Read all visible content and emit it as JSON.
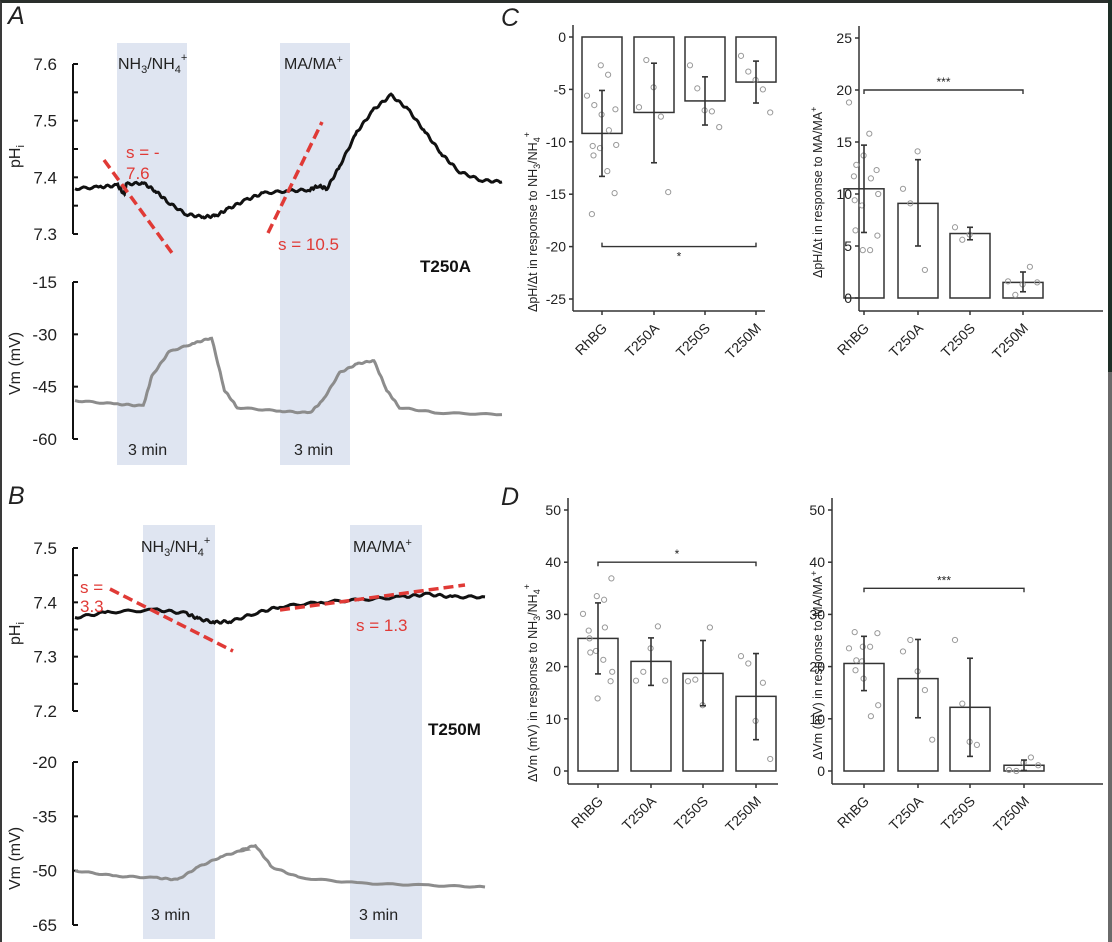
{
  "panels": {
    "A": {
      "letter": "A",
      "variant": "T250A",
      "ph_axis": {
        "label": "pH",
        "label_sub": "i",
        "ticks": [
          "7.6",
          "7.5",
          "7.4",
          "7.3"
        ],
        "range": [
          7.3,
          7.6
        ]
      },
      "vm_axis": {
        "label": "Vm (mV)",
        "ticks": [
          "-15",
          "-30",
          "-45",
          "-60"
        ],
        "range": [
          -60,
          -15
        ]
      },
      "stim1": {
        "label_main": "NH",
        "label_sub1": "3",
        "label_mid": "/NH",
        "label_sub2": "4",
        "label_sup": "+",
        "duration": "3 min"
      },
      "stim2": {
        "label_main": "MA/MA",
        "label_sup": "+",
        "duration": "3 min"
      },
      "slope1": {
        "line1": "s = -",
        "line2": "7.6"
      },
      "slope2": {
        "text": "s = 10.5"
      },
      "ph_trace": [
        [
          0,
          7.38
        ],
        [
          0.06,
          7.383
        ],
        [
          0.1,
          7.386
        ],
        [
          0.115,
          7.37
        ],
        [
          0.12,
          7.388
        ],
        [
          0.16,
          7.39
        ],
        [
          0.19,
          7.375
        ],
        [
          0.22,
          7.355
        ],
        [
          0.26,
          7.335
        ],
        [
          0.3,
          7.33
        ],
        [
          0.33,
          7.332
        ],
        [
          0.36,
          7.345
        ],
        [
          0.4,
          7.36
        ],
        [
          0.44,
          7.372
        ],
        [
          0.5,
          7.376
        ],
        [
          0.55,
          7.378
        ],
        [
          0.57,
          7.385
        ],
        [
          0.59,
          7.38
        ],
        [
          0.62,
          7.42
        ],
        [
          0.66,
          7.48
        ],
        [
          0.7,
          7.52
        ],
        [
          0.74,
          7.545
        ],
        [
          0.78,
          7.52
        ],
        [
          0.82,
          7.48
        ],
        [
          0.86,
          7.44
        ],
        [
          0.9,
          7.41
        ],
        [
          0.95,
          7.395
        ],
        [
          1.0,
          7.392
        ]
      ],
      "vm_trace": [
        [
          0,
          -49
        ],
        [
          0.1,
          -50
        ],
        [
          0.16,
          -50.5
        ],
        [
          0.18,
          -42
        ],
        [
          0.22,
          -35
        ],
        [
          0.28,
          -32.5
        ],
        [
          0.32,
          -31
        ],
        [
          0.35,
          -46
        ],
        [
          0.38,
          -51
        ],
        [
          0.48,
          -52
        ],
        [
          0.55,
          -52.5
        ],
        [
          0.58,
          -49
        ],
        [
          0.62,
          -41
        ],
        [
          0.66,
          -38.5
        ],
        [
          0.7,
          -37.5
        ],
        [
          0.73,
          -46
        ],
        [
          0.76,
          -51
        ],
        [
          0.85,
          -52.5
        ],
        [
          1.0,
          -53
        ]
      ]
    },
    "B": {
      "letter": "B",
      "variant": "T250M",
      "ph_axis": {
        "label": "pH",
        "label_sub": "i",
        "ticks": [
          "7.5",
          "7.4",
          "7.3",
          "7.2"
        ],
        "range": [
          7.2,
          7.5
        ]
      },
      "vm_axis": {
        "label": "Vm (mV)",
        "ticks": [
          "-20",
          "-35",
          "-50",
          "-65"
        ],
        "range": [
          -65,
          -20
        ]
      },
      "stim1": {
        "label_main": "NH",
        "label_sub1": "3",
        "label_mid": "/NH",
        "label_sub2": "4",
        "label_sup": "+",
        "duration": "3 min"
      },
      "stim2": {
        "label_main": "MA/MA",
        "label_sup": "+",
        "duration": "3 min"
      },
      "slope1": {
        "line1": "s =",
        "line2": "3.3"
      },
      "slope2": {
        "text": "s = 1.3"
      },
      "ph_trace": [
        [
          0,
          7.372
        ],
        [
          0.08,
          7.382
        ],
        [
          0.2,
          7.386
        ],
        [
          0.27,
          7.38
        ],
        [
          0.3,
          7.37
        ],
        [
          0.34,
          7.363
        ],
        [
          0.38,
          7.365
        ],
        [
          0.44,
          7.38
        ],
        [
          0.5,
          7.392
        ],
        [
          0.6,
          7.4
        ],
        [
          0.7,
          7.405
        ],
        [
          0.8,
          7.41
        ],
        [
          0.86,
          7.415
        ],
        [
          0.92,
          7.41
        ],
        [
          1.0,
          7.41
        ]
      ],
      "vm_trace": [
        [
          0,
          -50
        ],
        [
          0.1,
          -51.5
        ],
        [
          0.2,
          -52
        ],
        [
          0.25,
          -52.5
        ],
        [
          0.3,
          -49
        ],
        [
          0.36,
          -46
        ],
        [
          0.42,
          -44
        ],
        [
          0.4,
          -44.5
        ],
        [
          0.44,
          -43
        ],
        [
          0.48,
          -49
        ],
        [
          0.55,
          -52
        ],
        [
          0.7,
          -53.5
        ],
        [
          0.85,
          -54
        ],
        [
          1.0,
          -54.5
        ]
      ]
    }
  },
  "chart_data": [
    {
      "type": "bar",
      "panel": "C",
      "letter": "C",
      "title": "",
      "ylabel": "ΔpH/Δt in response to NH3/NH4+",
      "categories": [
        "RhBG",
        "T250A",
        "T250S",
        "T250M"
      ],
      "ylim": [
        -26,
        1
      ],
      "yticks": [
        "0",
        "-5",
        "-10",
        "-15",
        "-20",
        "-25"
      ],
      "ytick_values": [
        0,
        -5,
        -10,
        -15,
        -20,
        -25
      ],
      "values": [
        -9.2,
        -7.2,
        -6.1,
        -4.3
      ],
      "error_low": [
        -13.3,
        -12.0,
        -8.4,
        -6.3
      ],
      "error_high": [
        -5.1,
        -2.5,
        -3.8,
        -2.3
      ],
      "points": [
        [
          -5.6,
          -6.5,
          -7.4,
          -8.9,
          -10.3,
          -11.3,
          -2.7,
          -3.6,
          -6.9,
          -10.4,
          -10.6,
          -12.8,
          -14.9,
          -16.9
        ],
        [
          -6.7,
          -2.2,
          -4.8,
          -7.6,
          -14.8
        ],
        [
          -2.7,
          -4.9,
          -7.0,
          -7.1,
          -8.6
        ],
        [
          -1.8,
          -3.3,
          -4.1,
          -5.0,
          -7.2
        ]
      ],
      "significance": {
        "from": "RhBG",
        "to": "T250M",
        "y": -20,
        "label": "*"
      }
    },
    {
      "type": "bar",
      "panel": "C-right",
      "title": "",
      "ylabel": "ΔpH/Δt in response to MA/MA+",
      "categories": [
        "RhBG",
        "T250A",
        "T250S",
        "T250M"
      ],
      "ylim": [
        -1,
        26
      ],
      "yticks": [
        "0",
        "5",
        "10",
        "15",
        "20",
        "25"
      ],
      "ytick_values": [
        0,
        5,
        10,
        15,
        20,
        25
      ],
      "values": [
        10.5,
        9.1,
        6.2,
        1.5
      ],
      "error_low": [
        6.3,
        5.0,
        5.6,
        0.6
      ],
      "error_high": [
        14.7,
        13.3,
        6.8,
        2.5
      ],
      "points": [
        [
          18.8,
          12.8,
          13.7,
          11.5,
          10.0,
          6.5,
          4.6,
          4.6,
          6.0,
          9.4,
          8.9,
          15.8,
          12.3,
          11.7
        ],
        [
          10.5,
          9.1,
          14.1,
          2.7
        ],
        [
          6.8,
          5.6,
          6.1
        ],
        [
          1.6,
          0.3,
          1.3,
          3.0,
          1.5
        ]
      ],
      "significance": {
        "from": "RhBG",
        "to": "T250M",
        "y": 20,
        "label": "***"
      }
    },
    {
      "type": "bar",
      "panel": "D",
      "letter": "D",
      "title": "",
      "ylabel": "ΔVm (mV) in response to NH3/NH4+",
      "categories": [
        "RhBG",
        "T250A",
        "T250S",
        "T250M"
      ],
      "ylim": [
        -2,
        52
      ],
      "yticks": [
        "0",
        "10",
        "20",
        "30",
        "40",
        "50"
      ],
      "ytick_values": [
        0,
        10,
        20,
        30,
        40,
        50
      ],
      "values": [
        25.4,
        21.0,
        18.7,
        14.3
      ],
      "error_low": [
        18.6,
        16.4,
        12.5,
        6.0
      ],
      "error_high": [
        32.2,
        25.5,
        25.0,
        22.5
      ],
      "points": [
        [
          30.1,
          22.7,
          13.9,
          27.5,
          19.0,
          25.4,
          33.5,
          32.8,
          36.9,
          26.9,
          23.0,
          21.3,
          17.2
        ],
        [
          17.3,
          19.0,
          23.5,
          27.7,
          17.3
        ],
        [
          17.2,
          17.5,
          12.6,
          27.5
        ],
        [
          22.0,
          20.6,
          9.6,
          16.9,
          2.3
        ]
      ],
      "significance": {
        "from": "RhBG",
        "to": "T250M",
        "y": 40,
        "label": "*"
      }
    },
    {
      "type": "bar",
      "panel": "D-right",
      "title": "",
      "ylabel": "ΔVm (mV) in response to MA/MA+",
      "categories": [
        "RhBG",
        "T250A",
        "T250S",
        "T250M"
      ],
      "ylim": [
        -2,
        52
      ],
      "yticks": [
        "0",
        "10",
        "20",
        "30",
        "40",
        "50"
      ],
      "ytick_values": [
        0,
        10,
        20,
        30,
        40,
        50
      ],
      "values": [
        20.6,
        17.7,
        12.2,
        1.1
      ],
      "error_low": [
        15.4,
        10.2,
        2.8,
        0.1
      ],
      "error_high": [
        25.8,
        25.2,
        21.6,
        2.1
      ],
      "points": [
        [
          23.5,
          21.2,
          17.7,
          10.5,
          12.6,
          19.3,
          23.8,
          23.8,
          26.4,
          26.6,
          21.0
        ],
        [
          22.9,
          25.1,
          19.1,
          15.5,
          6.0
        ],
        [
          25.1,
          12.9,
          5.6,
          5.0
        ],
        [
          0.2,
          0.0,
          1.6,
          2.6,
          1.1
        ]
      ],
      "significance": {
        "from": "RhBG",
        "to": "T250M",
        "y": 35,
        "label": "***"
      }
    }
  ],
  "bar_ylabels": {
    "C": {
      "pre": "ΔpH/Δt in response to NH",
      "s1": "3",
      "mid": "/NH",
      "s2": "4",
      "sup": "+"
    },
    "Cr": {
      "pre": "ΔpH/Δt in response to MA/MA",
      "sup": "+"
    },
    "D": {
      "pre": "ΔVm (mV) in response to NH",
      "s1": "3",
      "mid": "/NH",
      "s2": "4",
      "sup": "+"
    },
    "Dr": {
      "pre": "ΔVm (mV) in response to MA/MA",
      "sup": "+"
    }
  }
}
